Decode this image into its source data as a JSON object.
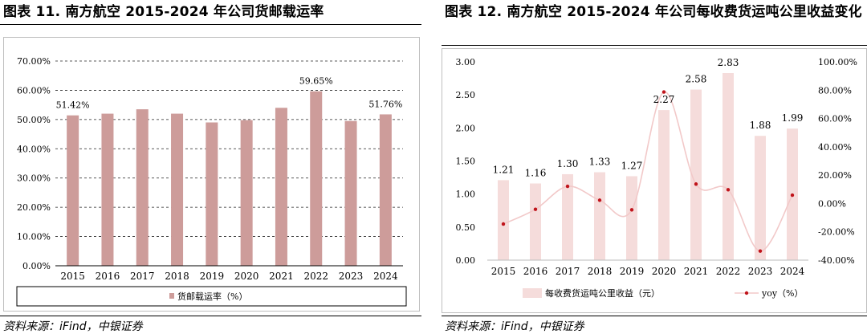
{
  "left_panel": {
    "title": "图表 11. 南方航空 2015-2024 年公司货邮载运率",
    "source": "资料来源：iFind，中银证券",
    "chart_data": {
      "type": "bar",
      "categories": [
        "2015",
        "2016",
        "2017",
        "2018",
        "2019",
        "2020",
        "2021",
        "2022",
        "2023",
        "2024"
      ],
      "series": [
        {
          "name": "货邮载运率（%）",
          "values": [
            51.42,
            52.0,
            53.5,
            52.0,
            49.0,
            49.8,
            54.0,
            59.65,
            49.5,
            51.76
          ]
        }
      ],
      "data_labels": [
        {
          "index": 0,
          "text": "51.42%"
        },
        {
          "index": 7,
          "text": "59.65%"
        },
        {
          "index": 9,
          "text": "51.76%"
        }
      ],
      "y_ticks": [
        "0.00%",
        "10.00%",
        "20.00%",
        "30.00%",
        "40.00%",
        "50.00%",
        "60.00%",
        "70.00%"
      ],
      "ylim": [
        0,
        70
      ],
      "grid": "horizontal-dashed",
      "legend": "bottom",
      "colors": {
        "bar": "#cd9c9a"
      }
    }
  },
  "right_panel": {
    "title": "图表 12. 南方航空 2015-2024 年公司每收费货运吨公里收益变化",
    "source": "资料来源：iFind，中银证券",
    "chart_data": {
      "type": "bar",
      "categories": [
        "2015",
        "2016",
        "2017",
        "2018",
        "2019",
        "2020",
        "2021",
        "2022",
        "2023",
        "2024"
      ],
      "series": [
        {
          "name": "每收费货运吨公里收益（元）",
          "axis": "left",
          "values": [
            1.21,
            1.16,
            1.3,
            1.33,
            1.27,
            2.27,
            2.58,
            2.83,
            1.88,
            1.99
          ],
          "labels": [
            "1.21",
            "1.16",
            "1.30",
            "1.33",
            "1.27",
            "2.27",
            "2.58",
            "2.83",
            "1.88",
            "1.99"
          ]
        },
        {
          "name": "yoy（%）",
          "type": "line",
          "axis": "right",
          "values": [
            -14.5,
            -4.1,
            12.1,
            2.3,
            -4.5,
            78.7,
            13.7,
            9.7,
            -33.6,
            5.9
          ]
        }
      ],
      "y_left_ticks": [
        "0.00",
        "0.50",
        "1.00",
        "1.50",
        "2.00",
        "2.50",
        "3.00"
      ],
      "ylim_left": [
        0,
        3
      ],
      "y_right_ticks": [
        "-40.00%",
        "-20.00%",
        "0.00%",
        "20.00%",
        "40.00%",
        "60.00%",
        "80.00%",
        "100.00%"
      ],
      "ylim_right": [
        -40,
        100
      ],
      "grid": false,
      "legend": "bottom",
      "colors": {
        "bar": "#f5dcdb",
        "line": "#f2c9c9",
        "marker": "#c0141b"
      }
    }
  }
}
